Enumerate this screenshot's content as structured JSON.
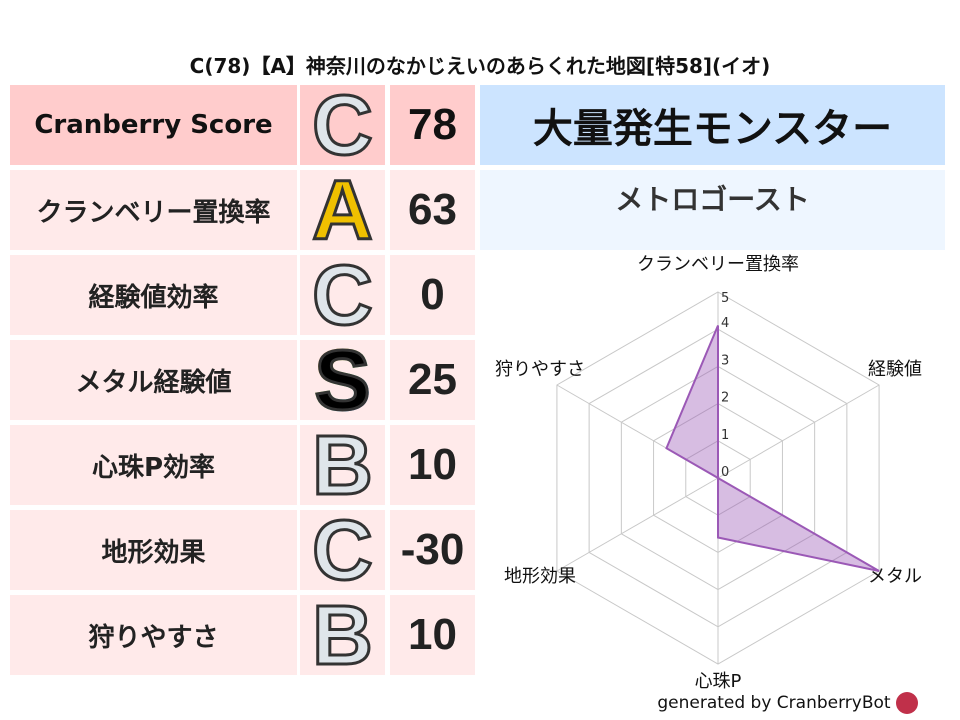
{
  "title": "C(78)【A】神奈川のなかじえいのあらくれた地図[特58](イオ)",
  "rows": [
    {
      "label": "Cranberry Score",
      "grade": "C",
      "value": "78"
    },
    {
      "label": "クランベリー置換率",
      "grade": "A",
      "value": "63"
    },
    {
      "label": "経験値効率",
      "grade": "C",
      "value": "0"
    },
    {
      "label": "メタル経験値",
      "grade": "S",
      "value": "25"
    },
    {
      "label": "心珠P効率",
      "grade": "B",
      "value": "10"
    },
    {
      "label": "地形効果",
      "grade": "C",
      "value": "-30"
    },
    {
      "label": "狩りやすさ",
      "grade": "B",
      "value": "10"
    }
  ],
  "monster": {
    "header": "大量発生モンスター",
    "name": "メトロゴースト"
  },
  "colors": {
    "header_row": "#ffcccc",
    "row": "#ffeaea",
    "monster_header": "#cce4ff",
    "monster_name": "#eef6ff",
    "radar_fill": "#9b59b6"
  },
  "chart_data": {
    "type": "radar",
    "axes": [
      "クランベリー置換率",
      "経験値",
      "メタル",
      "心珠P",
      "地形効果",
      "狩りやすさ"
    ],
    "values": [
      4.1,
      0,
      5,
      1.6,
      0,
      1.6
    ],
    "range": [
      0,
      5
    ],
    "ticks": [
      "0",
      "1",
      "2",
      "3",
      "4",
      "5"
    ]
  },
  "footer": "generated by CranberryBot"
}
